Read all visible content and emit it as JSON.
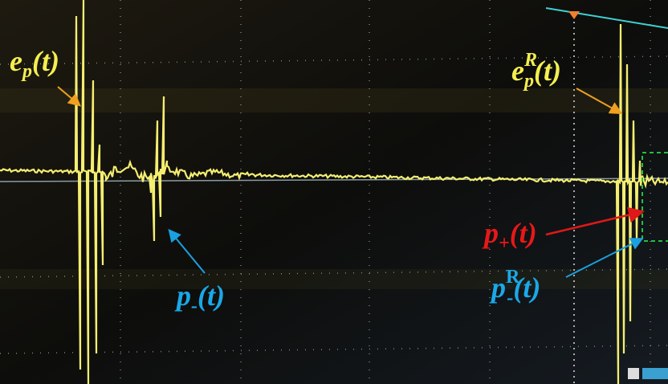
{
  "labels": [
    {
      "base": "e",
      "sub": "p",
      "tail": "(t)"
    },
    {
      "base": "e",
      "sup": "R",
      "sub": "p",
      "tail": "(t)"
    },
    {
      "base": "p",
      "sub": "-",
      "tail": "(t)"
    },
    {
      "base": "p",
      "sub": "+",
      "tail": "(t)"
    },
    {
      "base": "p",
      "sup": "R",
      "sub": "-",
      "tail": "(t)"
    }
  ]
}
